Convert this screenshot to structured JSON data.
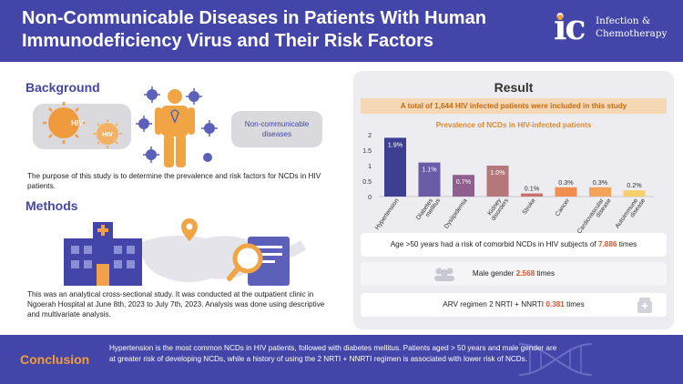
{
  "header": {
    "title": "Non-Communicable Diseases in Patients With Human Immunodeficiency Virus and Their Risk Factors",
    "logo_mark": "ic",
    "logo_text_line1": "Infection &",
    "logo_text_line2": "Chemotherapy"
  },
  "background": {
    "title": "Background",
    "virus_label_1": "HIV",
    "virus_label_2": "HIV",
    "ncd_label": "Non-communicable diseases",
    "text": "The purpose of this study is to determine the prevalence and risk factors for NCDs in HIV patients."
  },
  "methods": {
    "title": "Methods",
    "text": "This was an analytical cross-sectional study. It was conducted at the outpatient clinic in Ngoerah Hospital at June 8th, 2023 to July 7th, 2023. Analysis was done using descriptive and multivariate analysis."
  },
  "result": {
    "title": "Result",
    "banner": "A total of 1,644 HIV infected patients were included in this study",
    "stats": [
      {
        "text": "Age >50 years had a risk of comorbid NCDs in HIV subjects of",
        "value": "7.886",
        "suffix": "times"
      },
      {
        "text": "Male gender",
        "value": "2.568",
        "suffix": "times"
      },
      {
        "text": "ARV regimen 2 NRTI + NNRTI",
        "value": "0.381",
        "suffix": "times"
      }
    ]
  },
  "chart_data": {
    "type": "bar",
    "title": "Prevalence of NCDs in HIV-infected patients",
    "categories": [
      "Hypertension",
      "Diabetes mellitus",
      "Dyslipidemia",
      "Kidney disorders",
      "Stroke",
      "Cancer",
      "Cardiovascular disease",
      "Autoimmune disease"
    ],
    "values": [
      1.9,
      1.1,
      0.7,
      1.0,
      0.1,
      0.3,
      0.3,
      0.2
    ],
    "data_labels": [
      "1.9%",
      "1.1%",
      "0.7%",
      "1.0%",
      "0.1%",
      "0.3%",
      "0.3%",
      "0.2%"
    ],
    "colors": [
      "#3d3f93",
      "#6b5aa6",
      "#8e5f8f",
      "#b5787a",
      "#c9706a",
      "#ef8e4e",
      "#f3a35a",
      "#f6cf6a"
    ],
    "yticks": [
      0,
      0.5,
      1,
      1.5,
      2
    ],
    "ylim": [
      0,
      2
    ],
    "grid": false,
    "xlabel": "",
    "ylabel": ""
  },
  "conclusion": {
    "title": "Conclusion",
    "text": "Hypertension is the most common NCDs in HIV patients, followed with diabetes mellitus. Patients aged > 50 years and male gender are at greater risk of developing NCDs, while a history of using the 2 NRTI + NNRTI regimen is associated with lower risk of NCDs."
  }
}
